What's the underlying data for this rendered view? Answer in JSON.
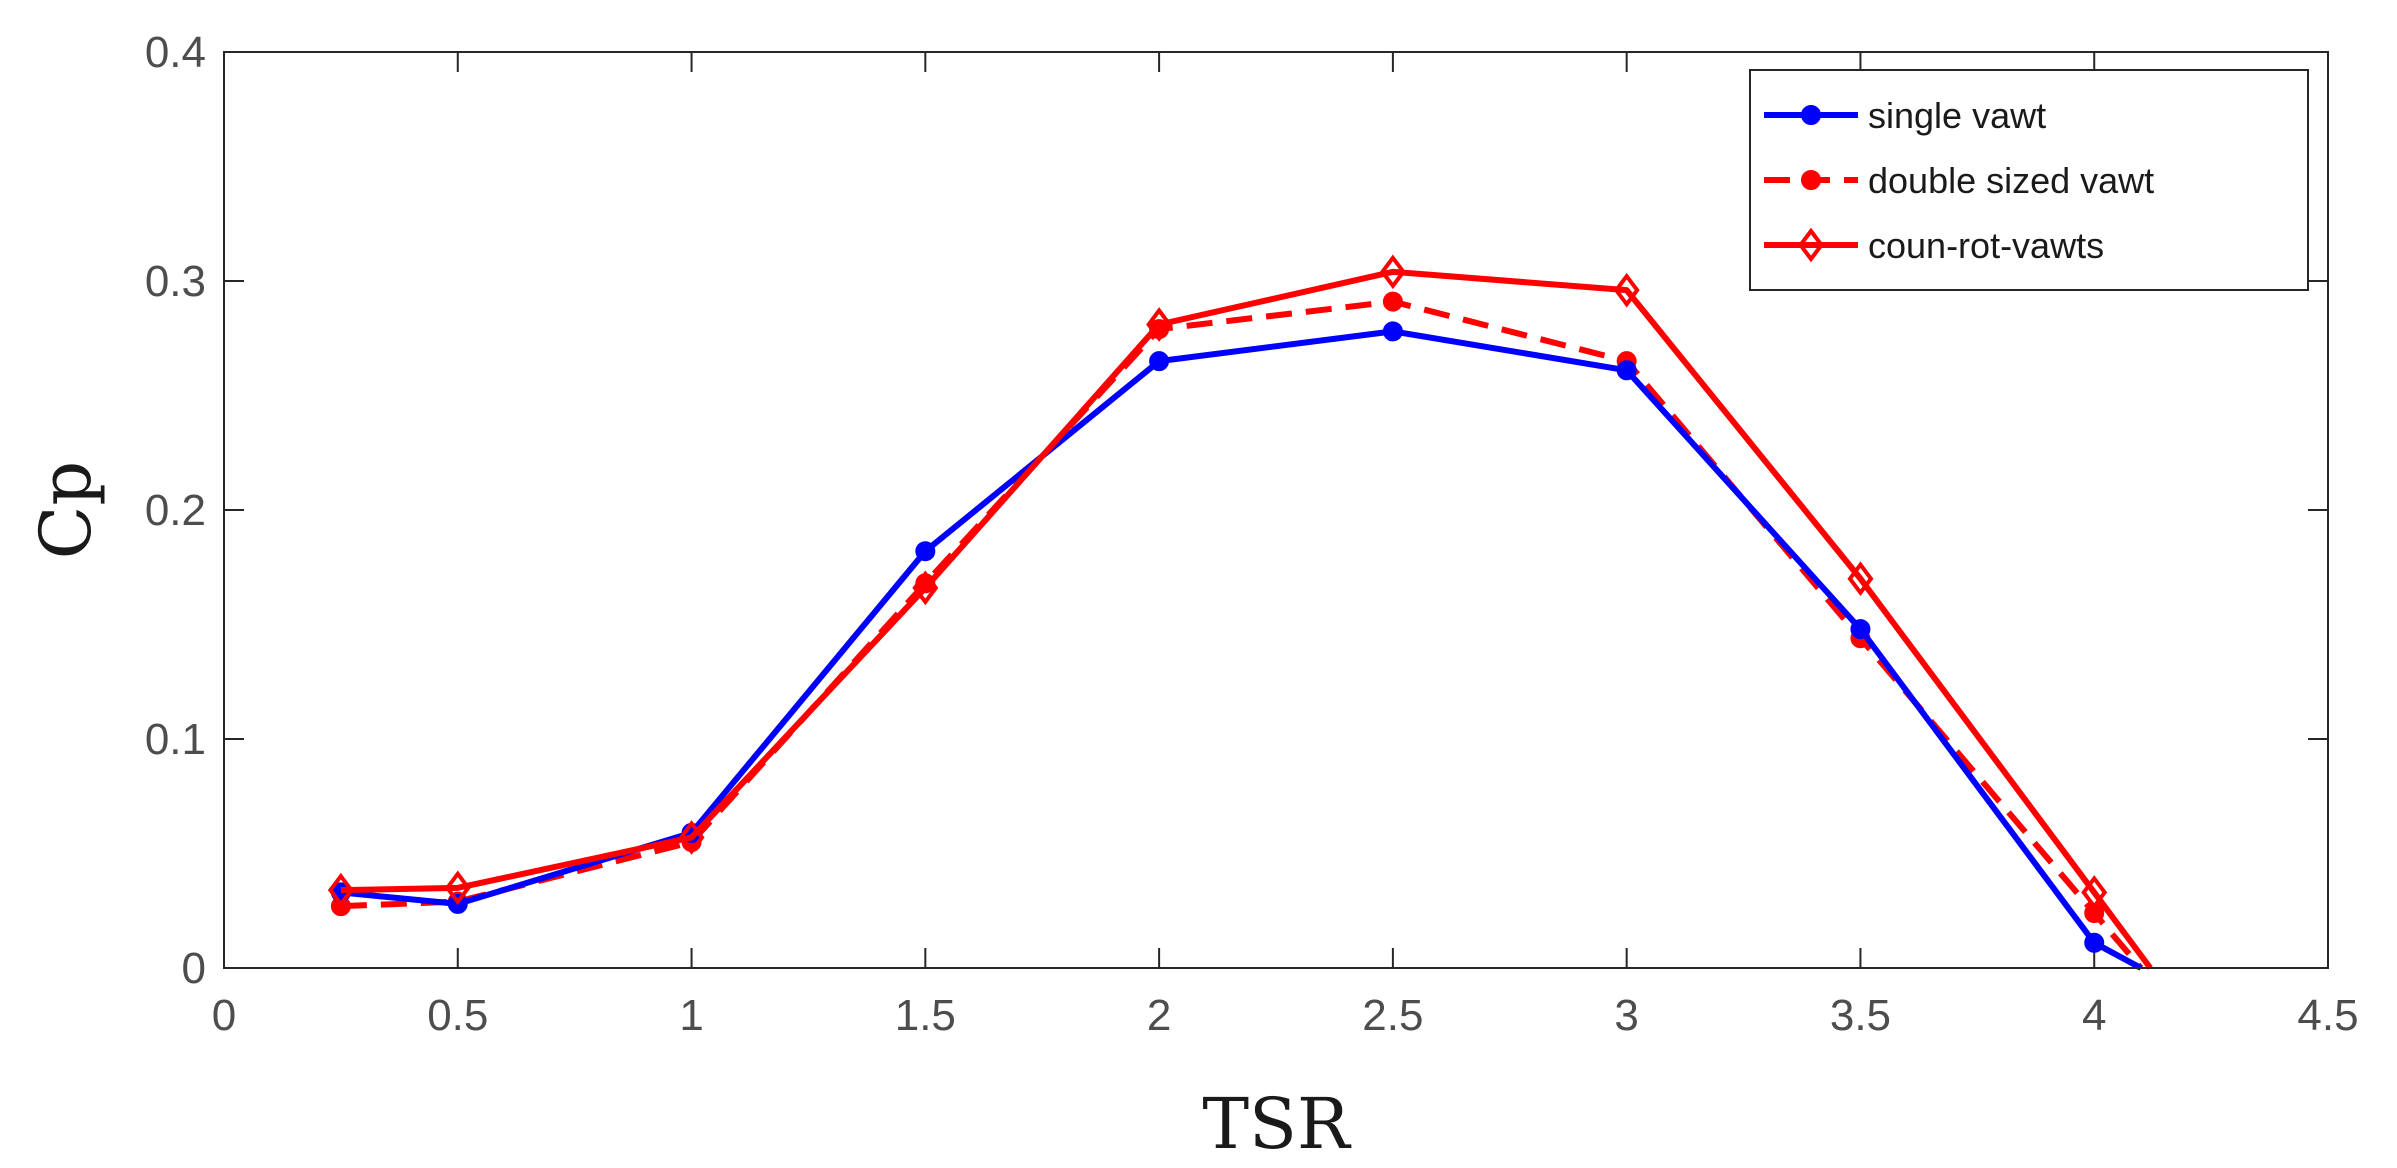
{
  "chart_data": {
    "type": "line",
    "title": "",
    "xlabel": "TSR",
    "ylabel": "Cp",
    "xlim": [
      0,
      4.5
    ],
    "ylim": [
      0,
      0.4
    ],
    "xticks": [
      0,
      0.5,
      1,
      1.5,
      2,
      2.5,
      3,
      3.5,
      4,
      4.5
    ],
    "xtick_labels": [
      "0",
      "0.5",
      "1",
      "1.5",
      "2",
      "2.5",
      "3",
      "3.5",
      "4",
      "4.5"
    ],
    "yticks": [
      0,
      0.1,
      0.2,
      0.3,
      0.4
    ],
    "ytick_labels": [
      "0",
      "0.1",
      "0.2",
      "0.3",
      "0.4"
    ],
    "grid": false,
    "box": true,
    "legend_position": "top-right",
    "series": [
      {
        "name": "single vawt",
        "color": "#0000ff",
        "line_style": "solid",
        "marker": "circle",
        "x": [
          0.25,
          0.5,
          1,
          1.5,
          2,
          2.5,
          3,
          3.5,
          4,
          4.1
        ],
        "y": [
          0.033,
          0.028,
          0.059,
          0.182,
          0.265,
          0.278,
          0.261,
          0.148,
          0.011,
          0.0
        ]
      },
      {
        "name": "double sized vawt",
        "color": "#ff0000",
        "line_style": "dashed",
        "marker": "circle",
        "x": [
          0.25,
          0.5,
          1,
          1.5,
          2,
          2.5,
          3,
          3.5,
          4,
          4.1
        ],
        "y": [
          0.027,
          0.029,
          0.055,
          0.168,
          0.279,
          0.291,
          0.265,
          0.144,
          0.024,
          0.0
        ]
      },
      {
        "name": "coun-rot-vawts",
        "color": "#ff0000",
        "line_style": "solid",
        "marker": "diamond",
        "x": [
          0.25,
          0.5,
          1,
          1.5,
          2,
          2.5,
          3,
          3.5,
          4,
          4.12
        ],
        "y": [
          0.034,
          0.035,
          0.057,
          0.166,
          0.281,
          0.304,
          0.296,
          0.17,
          0.033,
          0.0
        ]
      }
    ]
  }
}
